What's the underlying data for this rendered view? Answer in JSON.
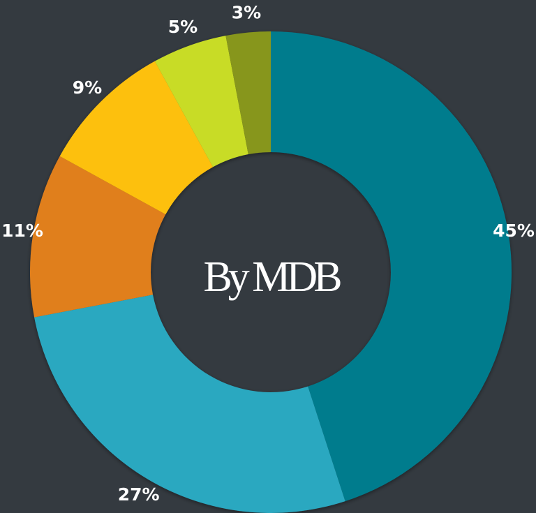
{
  "chart_data": {
    "type": "donut",
    "center_text": "By MDB",
    "values": [
      45,
      27,
      11,
      9,
      5,
      3
    ],
    "value_labels": [
      "45%",
      "27%",
      "11%",
      "9%",
      "5%",
      "3%"
    ],
    "colors": [
      "#017c8d",
      "#2ba8c0",
      "#e07f1e",
      "#fdc010",
      "#c8dc28",
      "#87961a"
    ]
  }
}
